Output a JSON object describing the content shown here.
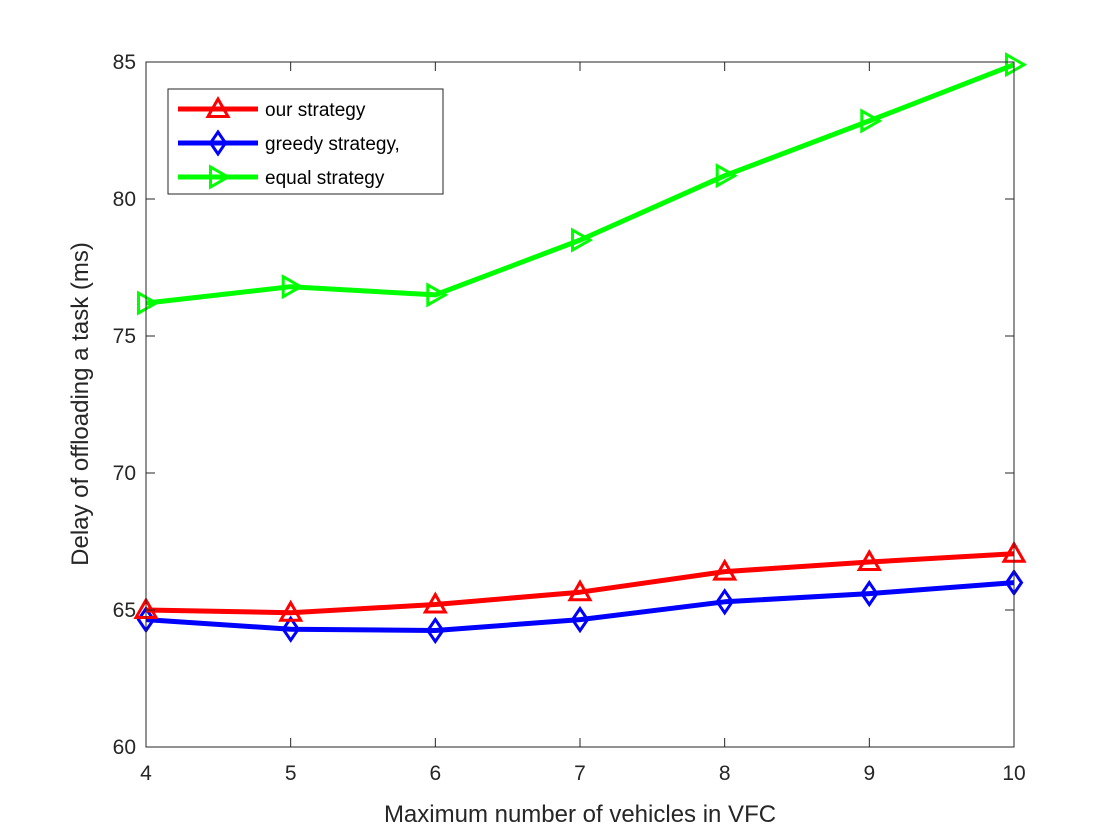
{
  "chart_data": {
    "type": "line",
    "title": "",
    "xlabel": "Maximum number of vehicles in VFC",
    "ylabel": "Delay of offloading a task (ms)",
    "xlim": [
      4,
      10
    ],
    "ylim": [
      60,
      85
    ],
    "x_ticks": [
      4,
      5,
      6,
      7,
      8,
      9,
      10
    ],
    "y_ticks": [
      60,
      65,
      70,
      75,
      80,
      85
    ],
    "x": [
      4,
      5,
      6,
      7,
      8,
      9,
      10
    ],
    "grid": false,
    "legend_position": "top-left",
    "series": [
      {
        "name": "our strategy",
        "color": "#ff0000",
        "marker": "triangle-up",
        "values": [
          65.0,
          64.9,
          65.2,
          65.65,
          66.4,
          66.75,
          67.05
        ]
      },
      {
        "name": "greedy strategy,",
        "color": "#0000ff",
        "marker": "diamond",
        "values": [
          64.65,
          64.3,
          64.25,
          64.65,
          65.3,
          65.6,
          66.0
        ]
      },
      {
        "name": "equal strategy",
        "color": "#00ff00",
        "marker": "triangle-right",
        "values": [
          76.2,
          76.8,
          76.5,
          78.5,
          80.85,
          82.85,
          84.9
        ]
      }
    ]
  }
}
